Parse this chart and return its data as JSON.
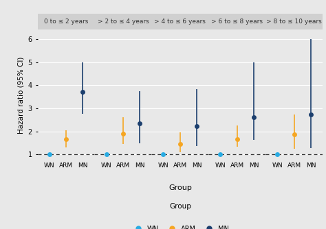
{
  "facets": [
    "0 to ≤ 2 years",
    "> 2 to ≤ 4 years",
    "> 4 to ≤ 6 years",
    "> 6 to ≤ 8 years",
    "> 8 to ≤ 10 years"
  ],
  "groups": [
    "WN",
    "ARM",
    "MN"
  ],
  "colors": {
    "WN": "#29ABE2",
    "ARM": "#F5A623",
    "MN": "#1C3F6E"
  },
  "data": {
    "0 to ≤ 2 years": {
      "WN": {
        "est": 1.0,
        "lo": 1.0,
        "hi": 1.0
      },
      "ARM": {
        "est": 1.65,
        "lo": 1.3,
        "hi": 2.05
      },
      "MN": {
        "est": 3.7,
        "lo": 2.75,
        "hi": 5.0
      }
    },
    "> 2 to ≤ 4 years": {
      "WN": {
        "est": 1.0,
        "lo": 1.0,
        "hi": 1.0
      },
      "ARM": {
        "est": 1.9,
        "lo": 1.45,
        "hi": 2.6
      },
      "MN": {
        "est": 2.35,
        "lo": 1.5,
        "hi": 3.75
      }
    },
    "> 4 to ≤ 6 years": {
      "WN": {
        "est": 1.0,
        "lo": 1.0,
        "hi": 1.0
      },
      "ARM": {
        "est": 1.47,
        "lo": 1.1,
        "hi": 1.97
      },
      "MN": {
        "est": 2.22,
        "lo": 1.38,
        "hi": 3.82
      }
    },
    "> 6 to ≤ 8 years": {
      "WN": {
        "est": 1.0,
        "lo": 1.0,
        "hi": 1.0
      },
      "ARM": {
        "est": 1.65,
        "lo": 1.35,
        "hi": 2.25
      },
      "MN": {
        "est": 2.62,
        "lo": 1.62,
        "hi": 5.0
      }
    },
    "> 8 to ≤ 10 years": {
      "WN": {
        "est": 1.0,
        "lo": 1.0,
        "hi": 1.0
      },
      "ARM": {
        "est": 1.88,
        "lo": 1.25,
        "hi": 2.72
      },
      "MN": {
        "est": 2.72,
        "lo": 1.27,
        "hi": 6.0
      }
    }
  },
  "ylabel": "Hazard ratio (95% CI)",
  "xlabel": "Group",
  "ylim": [
    0.75,
    6.4
  ],
  "yticks": [
    1,
    2,
    3,
    4,
    5,
    6
  ],
  "ytick_labels": [
    "1",
    "2",
    "3",
    "4",
    "5",
    "6"
  ],
  "panel_bg": "#E8E8E8",
  "fig_bg": "#E8E8E8",
  "grid_color": "#FFFFFF",
  "strip_bg": "#D0D0D0",
  "strip_fg": "#333333",
  "dashed_line_y": 1.0,
  "legend_title": "Group",
  "legend_groups": [
    "WN",
    "ARM",
    "MN"
  ],
  "marker_size_wn": 5,
  "marker_size_other": 5,
  "elinewidth": 1.2,
  "capsize": 2.0,
  "capthick": 1.2
}
